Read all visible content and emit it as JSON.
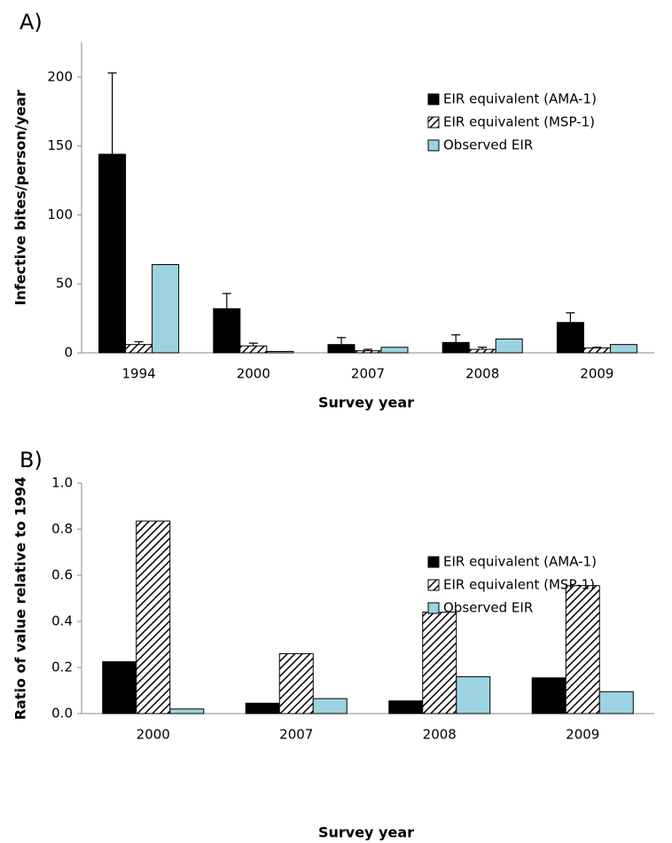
{
  "chart_data": [
    {
      "type": "bar",
      "panel_label": "A)",
      "x_label": "Survey year",
      "y_label": "Infective bites/person/year",
      "categories": [
        "1994",
        "2000",
        "2007",
        "2008",
        "2009"
      ],
      "ylim": [
        0,
        225
      ],
      "yticks": [
        0,
        50,
        100,
        150,
        200
      ],
      "series": [
        {
          "name": "EIR equivalent (AMA-1)",
          "color": "#000000",
          "values": [
            144,
            32,
            6,
            7.5,
            22
          ],
          "errors": [
            59,
            11,
            5,
            5.5,
            7
          ]
        },
        {
          "name": "EIR equivalent (MSP-1)",
          "color": "#000000",
          "pattern": "hatch",
          "values": [
            6,
            5,
            1.5,
            2.5,
            3.5
          ],
          "errors": [
            2,
            2,
            1,
            1.5,
            0.5
          ]
        },
        {
          "name": "Observed EIR",
          "color": "#9dd3e0",
          "values": [
            64,
            1,
            4,
            10,
            6
          ]
        }
      ]
    },
    {
      "type": "bar",
      "panel_label": "B)",
      "x_label": "Survey year",
      "y_label": "Ratio of value relative to 1994",
      "categories": [
        "2000",
        "2007",
        "2008",
        "2009"
      ],
      "ylim": [
        0,
        1
      ],
      "yticks": [
        {
          "value": 0,
          "label": "0.0"
        },
        0.2,
        0.4,
        0.6,
        0.8,
        {
          "value": 1,
          "label": "1.0"
        }
      ],
      "series": [
        {
          "name": "EIR equivalent (AMA-1)",
          "color": "#000000",
          "values": [
            0.225,
            0.045,
            0.055,
            0.155
          ]
        },
        {
          "name": "EIR equivalent (MSP-1)",
          "color": "#000000",
          "pattern": "hatch",
          "values": [
            0.835,
            0.26,
            0.44,
            0.555
          ]
        },
        {
          "name": "Observed EIR",
          "color": "#9dd3e0",
          "values": [
            0.02,
            0.065,
            0.16,
            0.095
          ]
        }
      ]
    }
  ]
}
